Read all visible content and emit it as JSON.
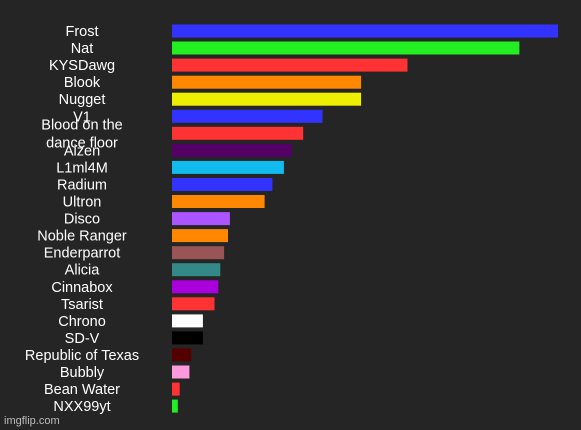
{
  "chart_data": {
    "type": "bar",
    "orientation": "horizontal",
    "categories": [
      "Frost",
      "Nat",
      "KYSDawg",
      "Blook",
      "Nugget",
      "V1",
      "Blood on the\ndance floor",
      "Aizen",
      "L1ml4M",
      "Radium",
      "Ultron",
      "Disco",
      "Noble Ranger",
      "Enderparrot",
      "Alicia",
      "Cinnabox",
      "Tsarist",
      "Chrono",
      "SD-V",
      "Republic of Texas",
      "Bubbly",
      "Bean Water",
      "NXX99yt"
    ],
    "values": [
      100,
      90,
      61,
      49,
      49,
      39,
      34,
      31,
      29,
      26,
      24,
      15,
      14.5,
      13.5,
      12.5,
      12,
      11,
      8,
      8,
      5,
      4.5,
      2,
      1.5
    ],
    "colors": [
      "#3333ff",
      "#22ee22",
      "#ff3333",
      "#ff8800",
      "#eeee00",
      "#3333ff",
      "#ff3333",
      "#550066",
      "#11bbee",
      "#3333ff",
      "#ff8800",
      "#aa55ff",
      "#ff8800",
      "#995555",
      "#338888",
      "#aa00dd",
      "#ff3333",
      "#ffffff",
      "#000000",
      "#550000",
      "#ff99dd",
      "#ff3333",
      "#22ee22"
    ],
    "xlim": [
      0,
      100
    ],
    "grid": false,
    "legend": "none"
  },
  "watermark": "imgflip.com"
}
